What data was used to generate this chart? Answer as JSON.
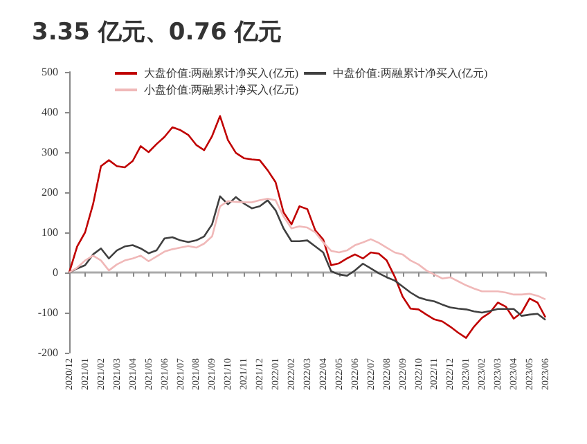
{
  "chart_data": {
    "type": "line",
    "title": "3.35 亿元、0.76 亿元",
    "categories": [
      "2020/12",
      null,
      "2021/01",
      null,
      "2021/02",
      null,
      "2021/03",
      null,
      "2021/04",
      null,
      "2021/05",
      null,
      "2021/06",
      null,
      "2021/07",
      null,
      "2021/08",
      null,
      "2021/09",
      null,
      "2021/10",
      null,
      "2021/11",
      null,
      "2021/12",
      null,
      "2022/01",
      null,
      "2022/02",
      null,
      "2022/03",
      null,
      "2022/04",
      null,
      "2022/05",
      null,
      "2022/06",
      null,
      "2022/07",
      null,
      "2022/08",
      null,
      "2022/09",
      null,
      "2022/10",
      null,
      "2022/11",
      null,
      "2022/12",
      null,
      "2023/01",
      null,
      "2023/02",
      null,
      "2023/03",
      null,
      "2023/04",
      null,
      "2023/05",
      null,
      "2023/06"
    ],
    "series": [
      {
        "name": "大盘价值:两融累计净买入(亿元)",
        "color": "#c00000",
        "values": [
          0,
          65,
          100,
          170,
          265,
          280,
          265,
          262,
          278,
          315,
          300,
          320,
          338,
          362,
          355,
          343,
          318,
          305,
          340,
          390,
          330,
          298,
          285,
          282,
          280,
          255,
          225,
          150,
          120,
          165,
          158,
          105,
          82,
          18,
          23,
          35,
          45,
          35,
          50,
          47,
          30,
          -10,
          -60,
          -90,
          -92,
          -105,
          -117,
          -122,
          -135,
          -150,
          -163,
          -135,
          -113,
          -100,
          -75,
          -85,
          -115,
          -100,
          -65,
          -75,
          -112
        ]
      },
      {
        "name": "中盘价值:两融累计净买入(亿元)",
        "color": "#404040",
        "values": [
          0,
          10,
          18,
          45,
          60,
          35,
          55,
          65,
          68,
          60,
          48,
          55,
          85,
          88,
          80,
          76,
          80,
          90,
          120,
          190,
          170,
          188,
          172,
          160,
          165,
          180,
          155,
          110,
          78,
          78,
          80,
          65,
          50,
          3,
          -5,
          -8,
          5,
          22,
          10,
          -2,
          -12,
          -20,
          -35,
          -50,
          -62,
          -68,
          -72,
          -80,
          -87,
          -90,
          -92,
          -97,
          -100,
          -96,
          -91,
          -91,
          -91,
          -108,
          -105,
          -103,
          -118
        ]
      },
      {
        "name": "小盘价值:两融累计净买入(亿元)",
        "color": "#f0b8b8",
        "values": [
          0,
          12,
          30,
          42,
          30,
          5,
          20,
          30,
          35,
          42,
          28,
          40,
          52,
          58,
          62,
          66,
          62,
          72,
          90,
          165,
          178,
          176,
          175,
          175,
          180,
          184,
          180,
          140,
          110,
          115,
          112,
          100,
          75,
          54,
          50,
          55,
          68,
          75,
          83,
          74,
          62,
          50,
          45,
          30,
          20,
          5,
          -5,
          -15,
          -12,
          -22,
          -32,
          -40,
          -47,
          -47,
          -47,
          -50,
          -55,
          -55,
          -53,
          -58,
          -67
        ]
      }
    ],
    "ylim": [
      -200,
      500
    ],
    "yticks": [
      -200,
      -100,
      0,
      100,
      200,
      300,
      400,
      500
    ],
    "legend": "top"
  }
}
